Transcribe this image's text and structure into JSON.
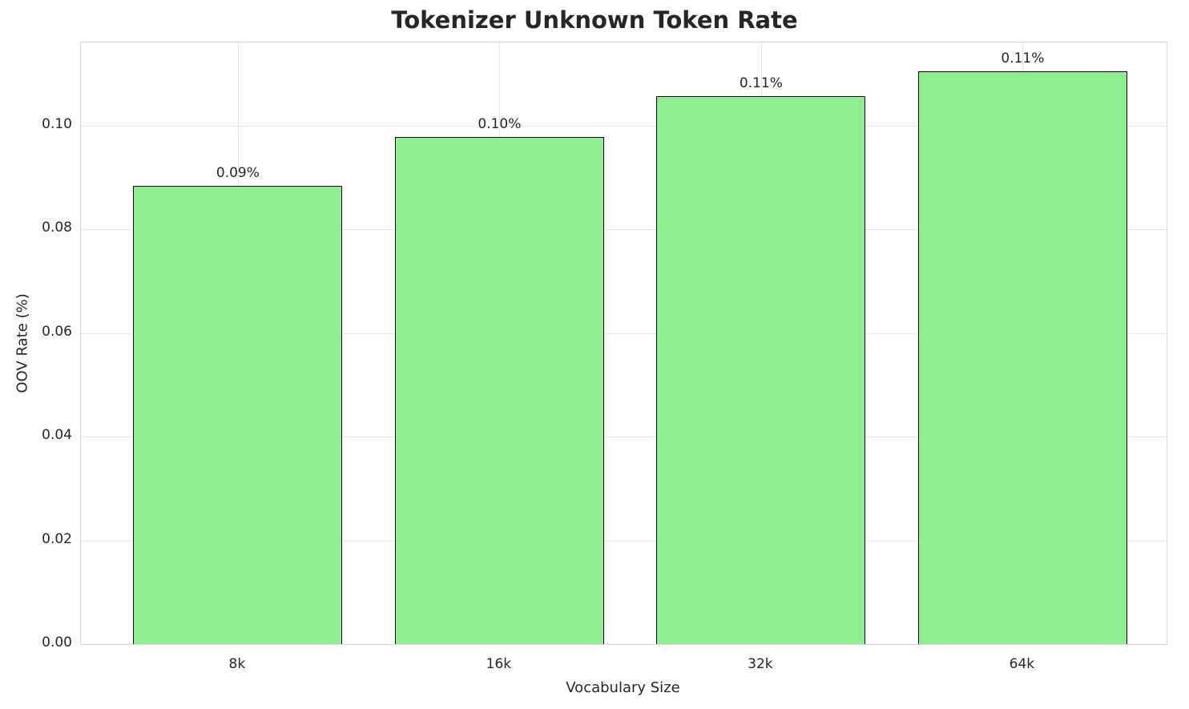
{
  "chart_data": {
    "type": "bar",
    "title": "Tokenizer Unknown Token Rate",
    "xlabel": "Vocabulary Size",
    "ylabel": "OOV Rate (%)",
    "categories": [
      "8k",
      "16k",
      "32k",
      "64k"
    ],
    "values": [
      0.0884,
      0.0977,
      0.1057,
      0.1104
    ],
    "bar_labels": [
      "0.09%",
      "0.10%",
      "0.11%",
      "0.11%"
    ],
    "yticks": [
      0.0,
      0.02,
      0.04,
      0.06,
      0.08,
      0.1
    ],
    "ytick_labels": [
      "0.00",
      "0.02",
      "0.04",
      "0.06",
      "0.08",
      "0.10"
    ],
    "ylim": [
      0,
      0.116
    ],
    "grid": true,
    "legend": "none",
    "bar_color": "#90EE90",
    "bar_edge_color": "#000000"
  }
}
